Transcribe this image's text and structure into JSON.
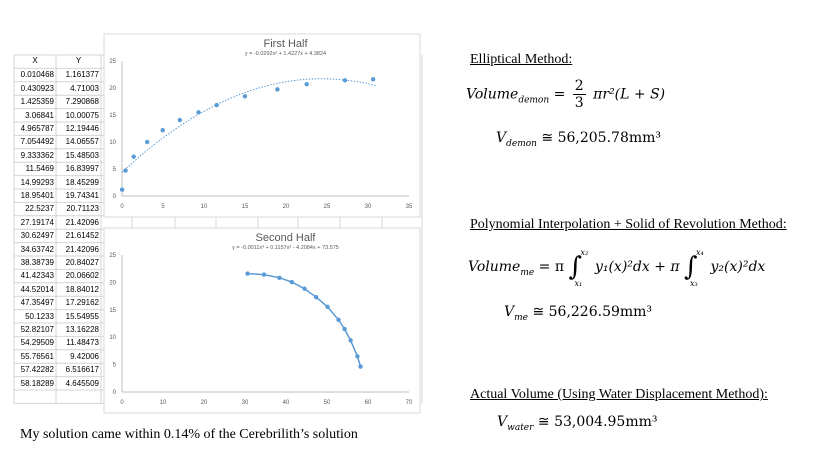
{
  "table": {
    "headers": [
      "X",
      "Y"
    ],
    "rows": [
      [
        "0.010468",
        "1.161377"
      ],
      [
        "0.430923",
        "4.71003"
      ],
      [
        "1.425359",
        "7.290868"
      ],
      [
        "3.06841",
        "10.00075"
      ],
      [
        "4.965787",
        "12.19446"
      ],
      [
        "7.054492",
        "14.06557"
      ],
      [
        "9.333362",
        "15.48503"
      ],
      [
        "11.5469",
        "16.83997"
      ],
      [
        "14.99293",
        "18.45299"
      ],
      [
        "18.95401",
        "19.74341"
      ],
      [
        "22.5237",
        "20.71123"
      ],
      [
        "27.19174",
        "21.42096"
      ],
      [
        "30.62497",
        "21.61452"
      ],
      [
        "34.63742",
        "21.42096"
      ],
      [
        "38.38739",
        "20.84027"
      ],
      [
        "41.42343",
        "20.06602"
      ],
      [
        "44.52014",
        "18.84012"
      ],
      [
        "47.35497",
        "17.29162"
      ],
      [
        "50.1233",
        "15.54955"
      ],
      [
        "52.82107",
        "13.16228"
      ],
      [
        "54.29509",
        "11.48473"
      ],
      [
        "55.76561",
        "9.42006"
      ],
      [
        "57.42282",
        "6.516617"
      ],
      [
        "58.18289",
        "4.645509"
      ]
    ]
  },
  "chart_data": [
    {
      "type": "scatter",
      "title": "First Half",
      "subtitle": "y = -0.0292x² + 1.4227x + 4.3824",
      "trendline": {
        "a": -0.0292,
        "b": 1.4227,
        "c": 4.3824,
        "style": "dotted"
      },
      "xlim": [
        0,
        35
      ],
      "ylim": [
        0,
        25
      ],
      "xticks": [
        "0",
        "5",
        "10",
        "15",
        "20",
        "25",
        "30",
        "35"
      ],
      "yticks": [
        "0",
        "5",
        "10",
        "15",
        "20",
        "25"
      ],
      "grid": false,
      "color": "#5b9bd5",
      "points": [
        [
          0.010468,
          1.161377
        ],
        [
          0.430923,
          4.71003
        ],
        [
          1.425359,
          7.290868
        ],
        [
          3.06841,
          10.00075
        ],
        [
          4.965787,
          12.19446
        ],
        [
          7.054492,
          14.06557
        ],
        [
          9.333362,
          15.48503
        ],
        [
          11.5469,
          16.83997
        ],
        [
          14.99293,
          18.45299
        ],
        [
          18.95401,
          19.74341
        ],
        [
          22.5237,
          20.71123
        ],
        [
          27.19174,
          21.42096
        ],
        [
          30.62497,
          21.61452
        ]
      ]
    },
    {
      "type": "line",
      "title": "Second Half",
      "subtitle": "y = -0.0011x³ + 0.1157x² - 4.2084x + 73.575",
      "xlim": [
        0,
        70
      ],
      "ylim": [
        0,
        25
      ],
      "xticks": [
        "0",
        "10",
        "20",
        "30",
        "40",
        "50",
        "60",
        "70"
      ],
      "yticks": [
        "0",
        "5",
        "10",
        "15",
        "20",
        "25"
      ],
      "grid": false,
      "color": "#5b9bd5",
      "points": [
        [
          30.62497,
          21.61452
        ],
        [
          34.63742,
          21.42096
        ],
        [
          38.38739,
          20.84027
        ],
        [
          41.42343,
          20.06602
        ],
        [
          44.52014,
          18.84012
        ],
        [
          47.35497,
          17.29162
        ],
        [
          50.1233,
          15.54955
        ],
        [
          52.82107,
          13.16228
        ],
        [
          54.29509,
          11.48473
        ],
        [
          55.76561,
          9.42006
        ],
        [
          57.42282,
          6.516617
        ],
        [
          58.18289,
          4.645509
        ]
      ]
    }
  ],
  "note": "My solution came within 0.14% of the Cerebrilith’s solution",
  "right": {
    "elliptical": {
      "heading": "Elliptical Method:",
      "formula_lhs": "Volume",
      "formula_lhs_sub": "demon",
      "frac_num": "2",
      "frac_den": "3",
      "formula_rhs": "πr²(L + S)",
      "result_v": "V",
      "result_sub": "demon",
      "result_val": "≅ 56,205.78mm³"
    },
    "polynomial": {
      "heading": "Polynomial Interpolation + Solid of Revolution Method:",
      "formula_lhs": "Volume",
      "formula_lhs_sub": "me",
      "pi1": "= π",
      "int1_top": "x₂",
      "int1_bot": "x₁",
      "term1": "y₁(x)²dx + π",
      "int2_top": "x₄",
      "int2_bot": "x₃",
      "term2": "y₂(x)²dx",
      "result_v": "V",
      "result_sub": "me",
      "result_val": "≅ 56,226.59mm³"
    },
    "actual": {
      "heading": "Actual Volume (Using Water Displacement Method):",
      "result_v": "V",
      "result_sub": "water",
      "result_val": "≅ 53,004.95mm³"
    }
  }
}
